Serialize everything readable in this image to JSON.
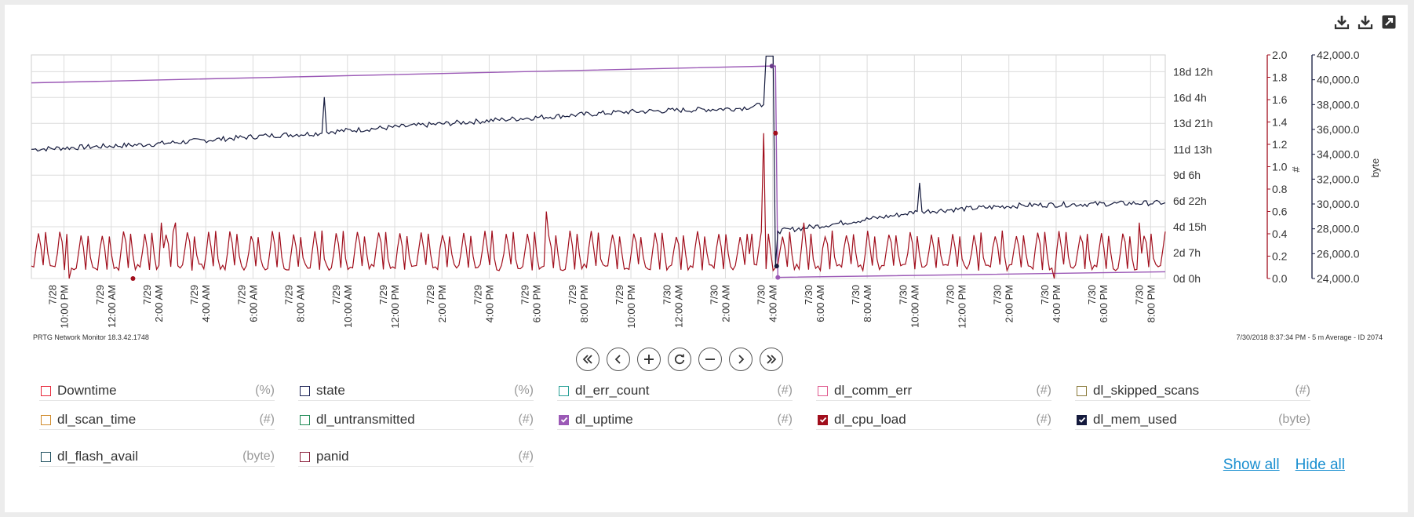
{
  "toolbar": {
    "icons": [
      "download-icon",
      "download-icon",
      "external-link-icon"
    ]
  },
  "footer": {
    "left": "PRTG Network Monitor 18.3.42.1748",
    "right": "7/30/2018 8:37:34 PM - 5 m Average - ID 2074"
  },
  "nav": {
    "buttons": [
      "first-page-icon",
      "previous-icon",
      "zoom-in-icon",
      "reset-icon",
      "zoom-out-icon",
      "next-icon",
      "last-page-icon"
    ]
  },
  "legend": {
    "items": [
      {
        "label": "Downtime",
        "unit": "(%)",
        "color": "#e8283a",
        "checked": false
      },
      {
        "label": "state",
        "unit": "(%)",
        "color": "#1c2356",
        "checked": false
      },
      {
        "label": "dl_err_count",
        "unit": "(#)",
        "color": "#2aa198",
        "checked": false
      },
      {
        "label": "dl_comm_err",
        "unit": "(#)",
        "color": "#e05b8f",
        "checked": false
      },
      {
        "label": "dl_skipped_scans",
        "unit": "(#)",
        "color": "#8a7a3a",
        "checked": false
      },
      {
        "label": "dl_scan_time",
        "unit": "(#)",
        "color": "#d08a2a",
        "checked": false
      },
      {
        "label": "dl_untransmitted",
        "unit": "(#)",
        "color": "#1f8a55",
        "checked": false
      },
      {
        "label": "dl_uptime",
        "unit": "(#)",
        "color": "#9b59b6",
        "checked": true
      },
      {
        "label": "dl_cpu_load",
        "unit": "(#)",
        "color": "#a10e1c",
        "checked": true
      },
      {
        "label": "dl_mem_used",
        "unit": "(byte)",
        "color": "#141a3d",
        "checked": true
      },
      {
        "label": "dl_flash_avail",
        "unit": "(byte)",
        "color": "#1d4f5e",
        "checked": false
      },
      {
        "label": "panid",
        "unit": "(#)",
        "color": "#8a1e3a",
        "checked": false
      }
    ],
    "show_all": "Show all",
    "hide_all": "Hide all"
  },
  "chart_data": {
    "type": "line",
    "title": "",
    "x_range": [
      "7/28 8:37 PM",
      "7/30 8:37 PM"
    ],
    "x_ticks": [
      "7/28 10:00 PM",
      "7/29 12:00 AM",
      "7/29 2:00 AM",
      "7/29 4:00 AM",
      "7/29 6:00 AM",
      "7/29 8:00 AM",
      "7/29 10:00 AM",
      "7/29 12:00 PM",
      "7/29 2:00 PM",
      "7/29 4:00 PM",
      "7/29 6:00 PM",
      "7/29 8:00 PM",
      "7/29 10:00 PM",
      "7/30 12:00 AM",
      "7/30 2:00 AM",
      "7/30 4:00 AM",
      "7/30 6:00 AM",
      "7/30 8:00 AM",
      "7/30 10:00 AM",
      "7/30 12:00 PM",
      "7/30 2:00 PM",
      "7/30 4:00 PM",
      "7/30 6:00 PM",
      "7/30 8:00 PM"
    ],
    "x_tick_hours": [
      1.38,
      3.38,
      5.38,
      7.38,
      9.38,
      11.38,
      13.38,
      15.38,
      17.38,
      19.38,
      21.38,
      23.38,
      25.38,
      27.38,
      29.38,
      31.38,
      33.38,
      35.38,
      37.38,
      39.38,
      41.38,
      43.38,
      45.38,
      47.38
    ],
    "x_hours_total": 48,
    "grid": true,
    "axes": [
      {
        "id": "uptime",
        "label": "",
        "ylim": [
          0,
          20
        ],
        "ticks": [
          "0d 0h",
          "2d 7h",
          "4d 15h",
          "6d 22h",
          "9d 6h",
          "11d 13h",
          "13d 21h",
          "16d 4h",
          "18d 12h"
        ],
        "tick_values": [
          0,
          2.31,
          4.63,
          6.94,
          9.25,
          11.56,
          13.88,
          16.19,
          18.5
        ]
      },
      {
        "id": "cpu",
        "label": "#",
        "ylim": [
          0,
          2.0
        ],
        "ticks": [
          "0.0",
          "0.2",
          "0.4",
          "0.6",
          "0.8",
          "1.0",
          "1.2",
          "1.4",
          "1.6",
          "1.8",
          "2.0"
        ],
        "tick_values": [
          0,
          0.2,
          0.4,
          0.6,
          0.8,
          1.0,
          1.2,
          1.4,
          1.6,
          1.8,
          2.0
        ]
      },
      {
        "id": "mem",
        "label": "byte",
        "ylim": [
          24000,
          42000
        ],
        "ticks": [
          "24,000.0",
          "26,000.0",
          "28,000.0",
          "30,000.0",
          "32,000.0",
          "34,000.0",
          "36,000.0",
          "38,000.0",
          "40,000.0",
          "42,000.0"
        ],
        "tick_values": [
          24000,
          26000,
          28000,
          30000,
          32000,
          34000,
          36000,
          38000,
          40000,
          42000
        ]
      }
    ],
    "series": [
      {
        "name": "dl_uptime",
        "axis": "uptime",
        "color": "#9b59b6",
        "points": [
          [
            0,
            17.5
          ],
          [
            31.2,
            19.0
          ],
          [
            31.5,
            19.0
          ],
          [
            31.6,
            0.1
          ],
          [
            48,
            0.6
          ]
        ]
      },
      {
        "name": "dl_mem_used",
        "axis": "mem",
        "color": "#141a3d",
        "points": [
          [
            0,
            34400
          ],
          [
            5,
            34800
          ],
          [
            10,
            35500
          ],
          [
            12.3,
            35700
          ],
          [
            12.4,
            38600
          ],
          [
            12.5,
            35800
          ],
          [
            20,
            36800
          ],
          [
            25,
            37400
          ],
          [
            30,
            37700
          ],
          [
            31.0,
            38000
          ],
          [
            31.1,
            41900
          ],
          [
            31.4,
            41900
          ],
          [
            31.5,
            25000
          ],
          [
            31.6,
            27800
          ],
          [
            34,
            28400
          ],
          [
            37,
            29200
          ],
          [
            37.5,
            29400
          ],
          [
            37.6,
            31700
          ],
          [
            37.7,
            29400
          ],
          [
            42,
            29900
          ],
          [
            48,
            30100
          ]
        ]
      },
      {
        "name": "dl_cpu_load",
        "axis": "cpu",
        "color": "#a10e1c",
        "baseline": [
          0.1,
          0.4
        ],
        "spikes": [
          [
            1.6,
            0.0
          ],
          [
            5.5,
            0.5
          ],
          [
            6.1,
            0.5
          ],
          [
            21.8,
            0.6
          ],
          [
            30.5,
            0.4
          ],
          [
            31.0,
            1.3
          ],
          [
            32.7,
            0.5
          ],
          [
            43.3,
            0.0
          ],
          [
            46.9,
            0.5
          ]
        ]
      }
    ]
  }
}
